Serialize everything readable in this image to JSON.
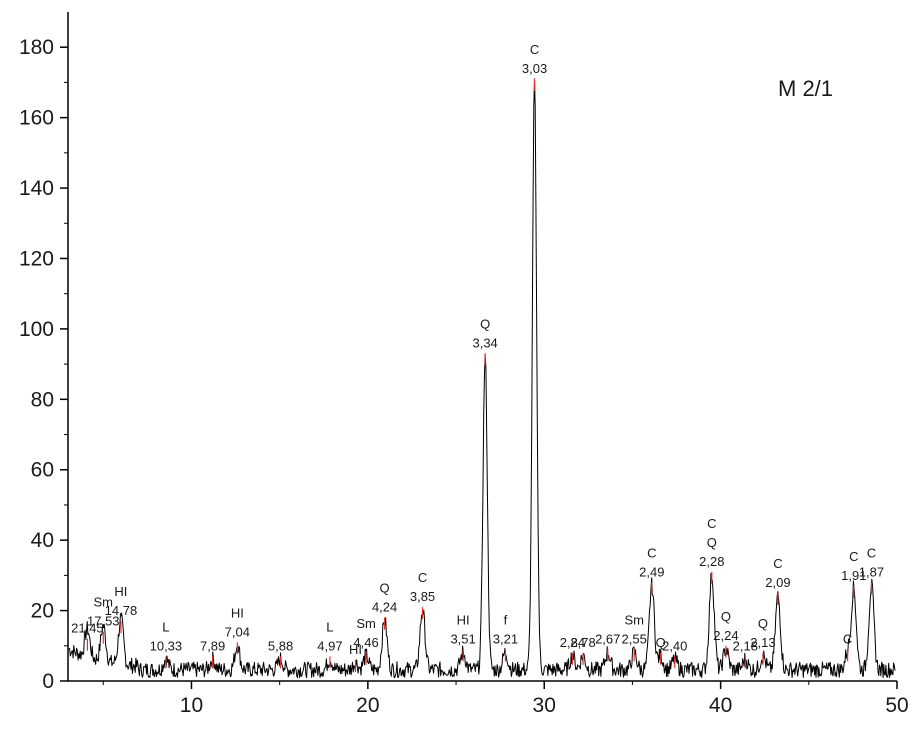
{
  "chart_data": {
    "type": "line",
    "title": "M 2/1",
    "xlabel": "",
    "ylabel": "",
    "xlim": [
      3,
      50
    ],
    "ylim": [
      0,
      190
    ],
    "x_ticks": [
      10,
      20,
      30,
      40,
      50
    ],
    "y_ticks": [
      0,
      20,
      40,
      60,
      80,
      100,
      120,
      140,
      160,
      180
    ],
    "grid": false,
    "colors": {
      "line": "#000000",
      "marker": "#e53030",
      "text": "#1a1a1a"
    },
    "peaks": [
      {
        "x": 4.1,
        "y": 12,
        "label": "",
        "d": "21,45"
      },
      {
        "x": 5.0,
        "y": 14,
        "label": "Sm",
        "d": "17,53"
      },
      {
        "x": 6.0,
        "y": 17,
        "label": "HI",
        "d": "14,78"
      },
      {
        "x": 8.55,
        "y": 7,
        "label": "L",
        "d": "10,33"
      },
      {
        "x": 11.2,
        "y": 7,
        "label": "",
        "d": "7,89"
      },
      {
        "x": 12.6,
        "y": 11,
        "label": "HI",
        "d": "7,04"
      },
      {
        "x": 15.05,
        "y": 7,
        "label": "",
        "d": "5,88"
      },
      {
        "x": 17.85,
        "y": 7,
        "label": "L",
        "d": "4,97"
      },
      {
        "x": 19.3,
        "y": 6,
        "label": "HI",
        "d": ""
      },
      {
        "x": 19.9,
        "y": 8,
        "label": "Sm",
        "d": "4,46"
      },
      {
        "x": 20.95,
        "y": 18,
        "label": "Q",
        "d": "4,24"
      },
      {
        "x": 23.1,
        "y": 21,
        "label": "C",
        "d": "3,85"
      },
      {
        "x": 25.4,
        "y": 9,
        "label": "HI",
        "d": "3,51"
      },
      {
        "x": 26.65,
        "y": 93,
        "label": "Q",
        "d": "3,34"
      },
      {
        "x": 27.8,
        "y": 9,
        "label": "f",
        "d": "3,21"
      },
      {
        "x": 29.45,
        "y": 171,
        "label": "C",
        "d": "3,03"
      },
      {
        "x": 31.6,
        "y": 8,
        "label": "",
        "d": "2,84"
      },
      {
        "x": 32.2,
        "y": 8,
        "label": "",
        "d": "2,78"
      },
      {
        "x": 33.6,
        "y": 9,
        "label": "",
        "d": "2,67"
      },
      {
        "x": 35.1,
        "y": 9,
        "label": "Sm",
        "d": "2,55"
      },
      {
        "x": 36.1,
        "y": 28,
        "label": "C",
        "d": "2,49"
      },
      {
        "x": 36.6,
        "y": 8,
        "label": "Q",
        "d": ""
      },
      {
        "x": 37.4,
        "y": 7,
        "label": "",
        "d": "2,40"
      },
      {
        "x": 39.5,
        "y": 31,
        "label": "C Q",
        "d": "2,28"
      },
      {
        "x": 40.3,
        "y": 10,
        "label": "Q",
        "d": "2,24"
      },
      {
        "x": 41.4,
        "y": 7,
        "label": "",
        "d": "2,18"
      },
      {
        "x": 42.4,
        "y": 8,
        "label": "Q",
        "d": "2,13"
      },
      {
        "x": 43.25,
        "y": 25,
        "label": "C",
        "d": "2,09"
      },
      {
        "x": 47.2,
        "y": 9,
        "label": "C",
        "d": ""
      },
      {
        "x": 47.55,
        "y": 27,
        "label": "C",
        "d": "1,91"
      },
      {
        "x": 48.55,
        "y": 28,
        "label": "C",
        "d": "1,87"
      }
    ]
  }
}
